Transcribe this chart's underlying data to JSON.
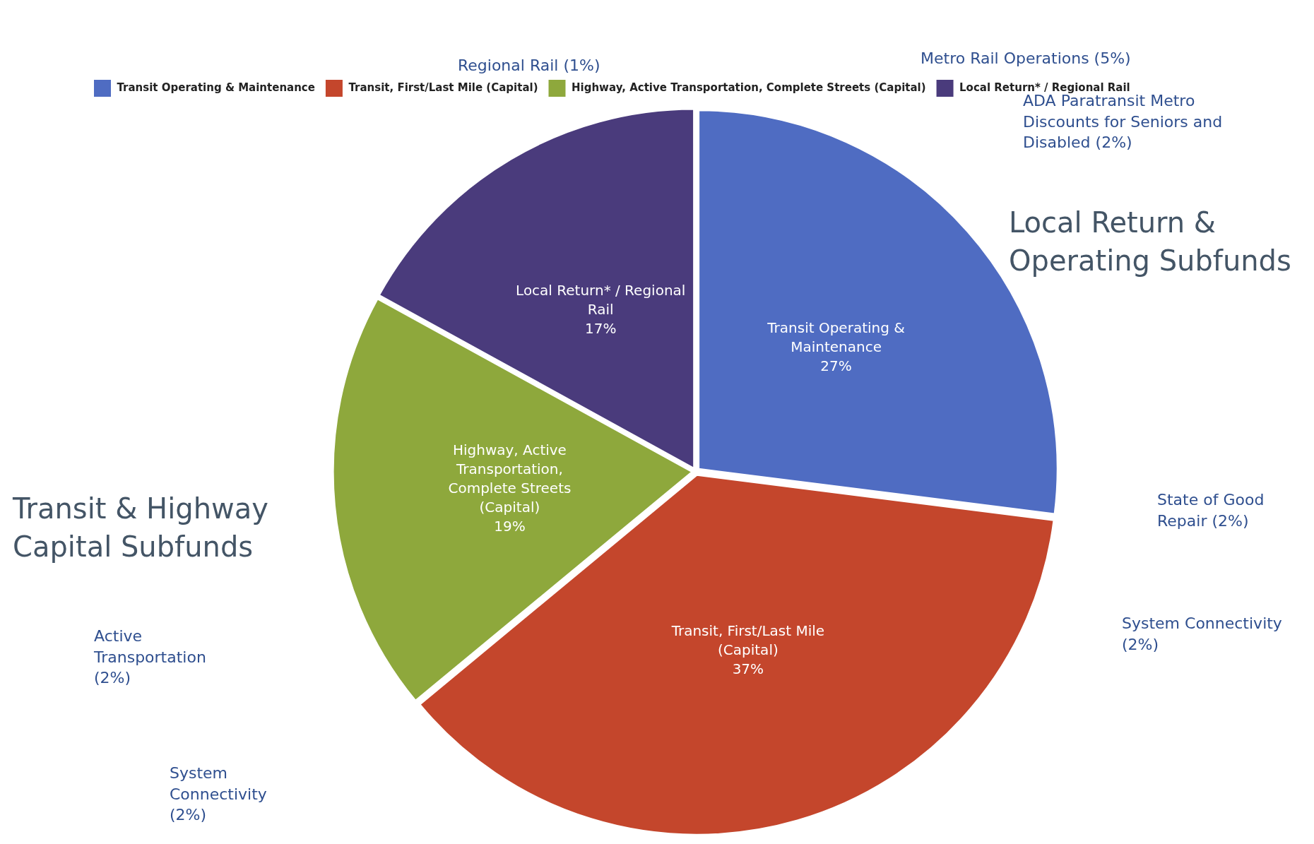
{
  "chart_data": {
    "type": "pie",
    "categories": [
      "Transit Operating & Maintenance",
      "Transit, First/Last Mile (Capital)",
      "Highway, Active Transportation, Complete Streets (Capital)",
      "Local Return* / Regional Rail"
    ],
    "values": [
      27,
      37,
      19,
      17
    ],
    "value_labels": [
      "27%",
      "37%",
      "19%",
      "17%"
    ],
    "colors": [
      "#4f6cc2",
      "#c4462c",
      "#8ea83c",
      "#4a3b7c"
    ],
    "legend": "top left",
    "annotations": [
      "Regional Rail (1%)",
      "Metro Rail Operations (5%)",
      "ADA Paratransit Metro Discounts for Seniors and Disabled (2%)",
      "Local Return & Operating Subfunds",
      "State of Good Repair (2%)",
      "System Connectivity (2%)",
      "Active Transportation (2%)",
      "System Connectivity (2%)",
      "Transit & Highway Capital Subfunds"
    ]
  }
}
